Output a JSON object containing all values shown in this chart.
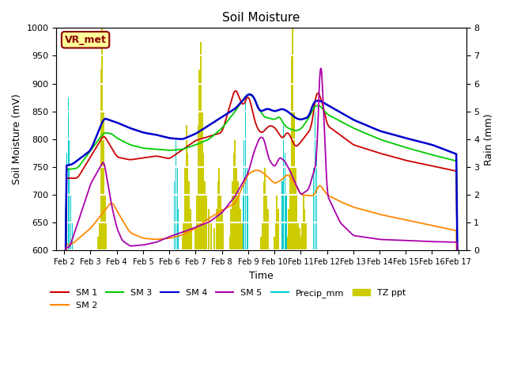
{
  "title": "Soil Moisture",
  "xlabel": "Time",
  "ylabel_left": "Soil Moisture (mV)",
  "ylabel_right": "Rain (mm)",
  "ylim_left": [
    600,
    1000
  ],
  "ylim_right": [
    0.0,
    8.0
  ],
  "background_color": "#e8e8e8",
  "fig_color": "#ffffff",
  "label_box_text": "VR_met",
  "label_box_facecolor": "#ffff99",
  "label_box_edgecolor": "#8b0000",
  "label_box_textcolor": "#8b0000",
  "colors": {
    "SM1": "#cc0000",
    "SM2": "#ff8800",
    "SM3": "#00cc00",
    "SM4": "#0000cc",
    "SM5": "#aa00aa",
    "Precip_mm": "#00cccc",
    "TZ_ppt": "#cccc00"
  },
  "xtick_labels": [
    "Feb 2",
    "Feb 3",
    "Feb 4",
    "Feb 5",
    "Feb 6",
    "Feb 7",
    "Feb 8",
    "Feb 9",
    "Feb 10",
    "Feb 11",
    "Feb 12",
    "Feb 13",
    "Feb 14",
    "Feb 15",
    "Feb 16",
    "Feb 17"
  ],
  "yticks_left": [
    600,
    650,
    700,
    750,
    800,
    850,
    900,
    950,
    1000
  ],
  "yticks_right": [
    0.0,
    1.0,
    2.0,
    3.0,
    4.0,
    5.0,
    6.0,
    7.0,
    8.0
  ]
}
